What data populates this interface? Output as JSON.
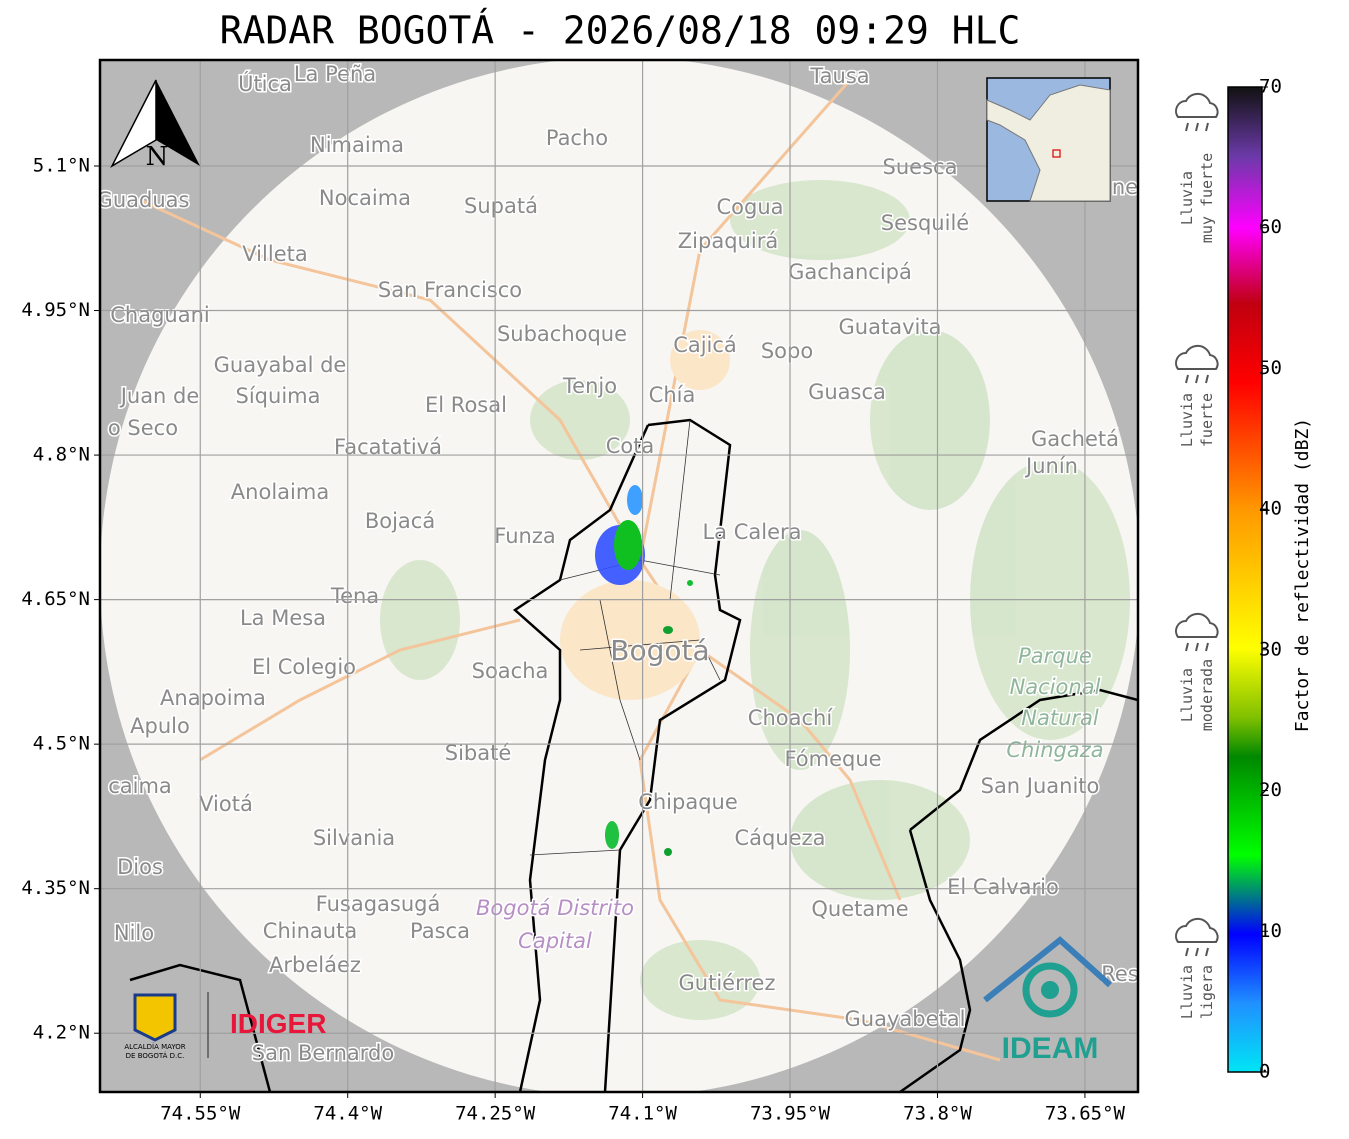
{
  "title": "RADAR BOGOTÁ - 2026/08/18 09:29 HLC",
  "map": {
    "xlim": [
      -74.652,
      -73.596
    ],
    "ylim": [
      4.139,
      5.21
    ],
    "xticks": [
      {
        "value": -74.55,
        "label": "74.55°W"
      },
      {
        "value": -74.4,
        "label": "74.4°W"
      },
      {
        "value": -74.25,
        "label": "74.25°W"
      },
      {
        "value": -74.1,
        "label": "74.1°W"
      },
      {
        "value": -73.95,
        "label": "73.95°W"
      },
      {
        "value": -73.8,
        "label": "73.8°W"
      },
      {
        "value": -73.65,
        "label": "73.65°W"
      }
    ],
    "yticks": [
      {
        "value": 5.1,
        "label": "5.1°N"
      },
      {
        "value": 4.95,
        "label": "4.95°N"
      },
      {
        "value": 4.8,
        "label": "4.8°N"
      },
      {
        "value": 4.65,
        "label": "4.65°N"
      },
      {
        "value": 4.5,
        "label": "4.5°N"
      },
      {
        "value": 4.35,
        "label": "4.35°N"
      },
      {
        "value": 4.2,
        "label": "4.2°N"
      }
    ]
  },
  "north_label": "N",
  "places": [
    "Útica",
    "La Peña",
    "Tausa",
    "Pacho",
    "Nimaima",
    "Guaduas",
    "Nocaima",
    "Supatá",
    "Cogua",
    "Suesca",
    "Sesquilé",
    "Zipaquirá",
    "Villeta",
    "Gachancipá",
    "San Francisco",
    "Chaguani",
    "Guatavita",
    "Subachoque",
    "Cajicá",
    "Sopo",
    "Guayabal de",
    "Síquima",
    "Tenjo",
    "Chía",
    "Guasca",
    "Juan de",
    "El Rosal",
    "o Seco",
    "Facatativá",
    "Cota",
    "Gachetá",
    "Junín",
    "Anolaima",
    "Bojacá",
    "Funza",
    "La Calera",
    "Tena",
    "La Mesa",
    "Bogotá",
    "Parque",
    "Soacha",
    "El Colegio",
    "Nacional",
    "Anapoima",
    "Natural",
    "Apulo",
    "Choachí",
    "Chingaza",
    "Sibaté",
    "Fómeque",
    "San Juanito",
    "caima",
    "Viotá",
    "Chipaque",
    "Silvania",
    "Cáqueza",
    "Dios",
    "El Calvario",
    "Fusagasugá",
    "Bogotá Distrito",
    "Quetame",
    "Nilo",
    "Chinauta",
    "Pasca",
    "Capital",
    "Arbeláez",
    "Gutiérrez",
    "Res",
    "Guayabetal",
    "San Bernardo",
    "ne"
  ],
  "colorbar": {
    "label": "Factor de reflectividad (dBZ)",
    "lim": [
      0,
      70
    ],
    "ticks": [
      0,
      10,
      20,
      30,
      40,
      50,
      60,
      70
    ]
  },
  "rain_levels": [
    [
      "Lluvia",
      "muy fuerte"
    ],
    [
      "Lluvia",
      "fuerte"
    ],
    [
      "Lluvia",
      "moderada"
    ],
    [
      "Lluvia",
      "ligera"
    ]
  ],
  "logos": {
    "alcaldia": [
      "ALCALDÍA MAYOR",
      "DE BOGOTÁ D.C."
    ],
    "idiger": "IDIGER",
    "ideam": "IDEAM"
  }
}
